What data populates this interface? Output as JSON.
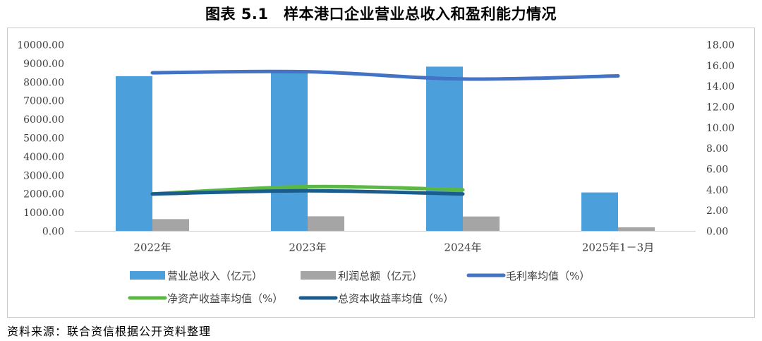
{
  "title": "图表 5.1　样本港口企业营业总收入和盈利能力情况",
  "source": "资料来源：联合资信根据公开资料整理",
  "chart_data": {
    "type": "bar",
    "title": "图表 5.1　样本港口企业营业总收入和盈利能力情况",
    "categories": [
      "2022年",
      "2023年",
      "2024年",
      "2025年1－3月"
    ],
    "y_left": {
      "ylim": [
        0,
        10000
      ],
      "ticks": [
        "0.00",
        "1000.00",
        "2000.00",
        "3000.00",
        "4000.00",
        "5000.00",
        "6000.00",
        "7000.00",
        "8000.00",
        "9000.00",
        "10000.00"
      ]
    },
    "y_right": {
      "ylim": [
        0,
        18
      ],
      "ticks": [
        "0.00",
        "2.00",
        "4.00",
        "6.00",
        "8.00",
        "10.00",
        "12.00",
        "14.00",
        "16.00",
        "18.00"
      ]
    },
    "grid": false,
    "legend_position": "bottom",
    "series": [
      {
        "name": "营业总收入（亿元）",
        "kind": "bar",
        "axis": "left",
        "color": "#4ba0dc",
        "values": [
          8320,
          8650,
          8830,
          2080
        ]
      },
      {
        "name": "利润总额（亿元）",
        "kind": "bar",
        "axis": "left",
        "color": "#a5a5a5",
        "values": [
          650,
          800,
          790,
          210
        ]
      },
      {
        "name": "毛利率均值（%）",
        "kind": "line",
        "axis": "right",
        "color": "#4472c4",
        "values": [
          15.3,
          15.4,
          14.7,
          15.0
        ]
      },
      {
        "name": "净资产收益率均值（%）",
        "kind": "line",
        "axis": "right",
        "color": "#5cb844",
        "values": [
          3.6,
          4.3,
          4.0,
          null
        ]
      },
      {
        "name": "总资本收益率均值（%）",
        "kind": "line",
        "axis": "right",
        "color": "#1a5d8c",
        "values": [
          3.6,
          3.9,
          3.6,
          null
        ]
      }
    ]
  }
}
